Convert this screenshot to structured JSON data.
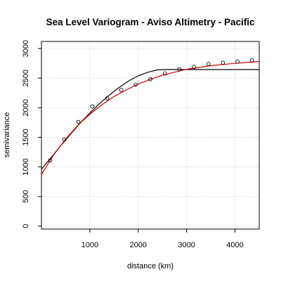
{
  "chart_data": {
    "type": "scatter",
    "title": "Sea Level Variogram - Aviso Altimetry - Pacific",
    "xlabel": "distance (km)",
    "ylabel": "semivariance",
    "xlim": [
      0,
      4500
    ],
    "ylim": [
      -50,
      3120
    ],
    "xticks": [
      1000,
      2000,
      3000,
      4000
    ],
    "yticks": [
      0,
      500,
      1000,
      1500,
      2000,
      2500,
      3000
    ],
    "grid": true,
    "grid_style": "dotted",
    "series": [
      {
        "kind": "points",
        "color": "#000000",
        "x": [
          180,
          470,
          760,
          1050,
          1360,
          1650,
          1950,
          2250,
          2550,
          2850,
          3150,
          3450,
          3750,
          4050,
          4350
        ],
        "y": [
          1110,
          1460,
          1760,
          2020,
          2160,
          2300,
          2390,
          2480,
          2580,
          2650,
          2690,
          2740,
          2760,
          2780,
          2800
        ]
      },
      {
        "kind": "line",
        "color": "#000000",
        "x": [
          0,
          200,
          400,
          600,
          800,
          1000,
          1200,
          1400,
          1600,
          1800,
          2000,
          2200,
          2400,
          2600,
          2800,
          3000,
          3500,
          4000,
          4500
        ],
        "y": [
          960,
          1160,
          1360,
          1550,
          1740,
          1910,
          2070,
          2210,
          2340,
          2450,
          2540,
          2600,
          2640,
          2645,
          2645,
          2645,
          2645,
          2645,
          2645
        ]
      },
      {
        "kind": "line",
        "color": "#cc0000",
        "x": [
          0,
          250,
          500,
          750,
          1000,
          1250,
          1500,
          1750,
          2000,
          2250,
          2500,
          2750,
          3000,
          3250,
          3500,
          3750,
          4000,
          4250,
          4500
        ],
        "y": [
          870,
          1200,
          1470,
          1700,
          1890,
          2050,
          2190,
          2300,
          2400,
          2480,
          2550,
          2600,
          2650,
          2680,
          2710,
          2730,
          2750,
          2765,
          2780
        ]
      }
    ]
  }
}
